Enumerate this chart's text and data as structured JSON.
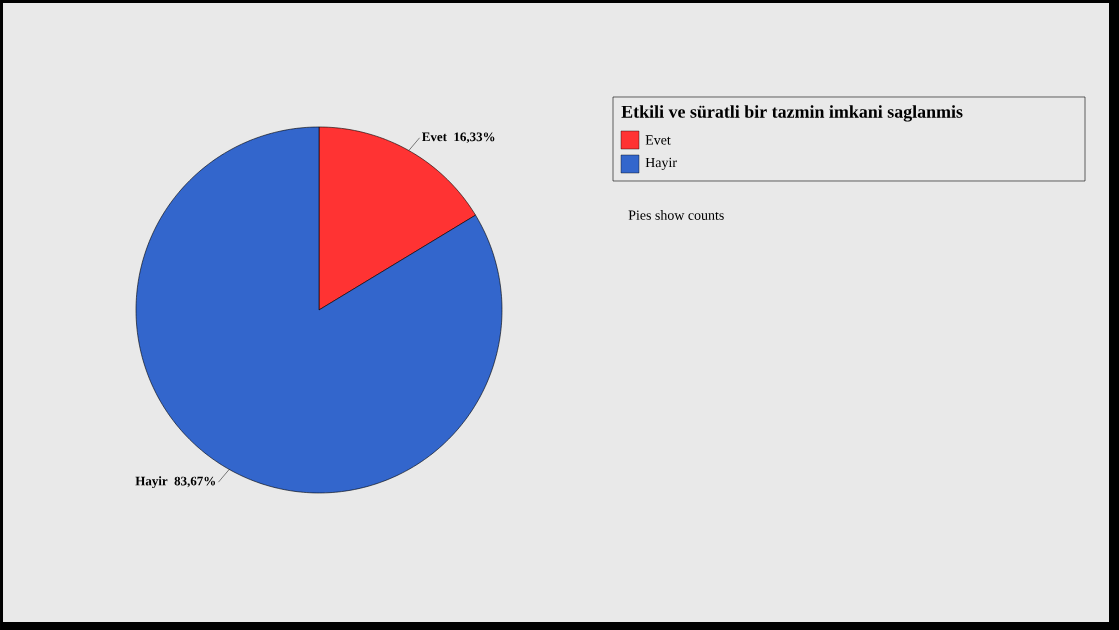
{
  "chart_data": {
    "type": "pie",
    "legend_title": "Etkili ve süratli bir tazmin imkani saglanmis",
    "legend": "top right",
    "categories": [
      "Evet",
      "Hayir"
    ],
    "values": [
      16.33,
      83.67
    ],
    "value_labels": [
      "16,33%",
      "83,67%"
    ],
    "colors": [
      "#ff3333",
      "#3366cc"
    ],
    "annotations": [
      "Pies show counts"
    ]
  }
}
